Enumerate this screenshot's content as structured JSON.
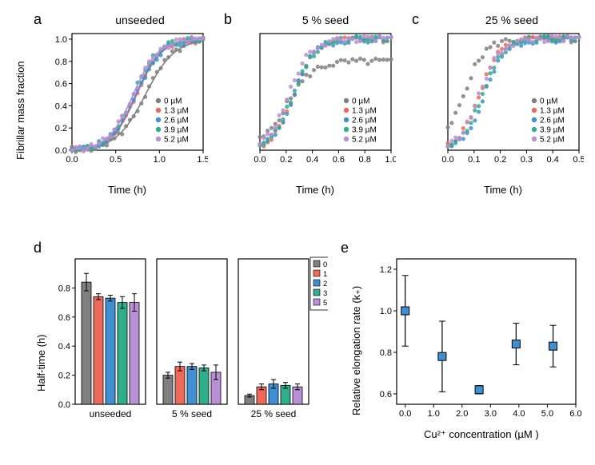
{
  "colors": {
    "c0": "#808080",
    "c1": "#ed6a5a",
    "c2": "#3f8fd2",
    "c3": "#2fae8c",
    "c4": "#b98fd6",
    "axis": "#000000",
    "bg": "#ffffff",
    "plotE_marker_fill": "#3f8fd2",
    "plotE_marker_edge": "#000000"
  },
  "concentrations": [
    "0 µM",
    "1.3 µM",
    "2.6 µM",
    "3.9 µM",
    "5.2 µM"
  ],
  "panelA": {
    "label": "a",
    "title": "unseeded",
    "xlabel": "Time (h)",
    "xlim": [
      0,
      1.5
    ],
    "xticks": [
      0.0,
      0.5,
      1.0,
      1.5
    ],
    "ylim": [
      0,
      1.05
    ],
    "yticks": [
      0.0,
      0.2,
      0.4,
      0.6,
      0.8,
      1.0
    ],
    "curves": {
      "t50": [
        0.84,
        0.74,
        0.73,
        0.7,
        0.7
      ],
      "k": [
        6,
        7,
        7,
        7,
        7
      ]
    }
  },
  "panelB": {
    "label": "b",
    "title": "5 % seed",
    "xlabel": "Time (h)",
    "xlim": [
      0,
      1.0
    ],
    "xticks": [
      0.0,
      0.2,
      0.4,
      0.6,
      0.8,
      1.0
    ],
    "ylim": [
      0,
      1.05
    ],
    "yticks": [
      0.0,
      0.2,
      0.4,
      0.6,
      0.8,
      1.0
    ],
    "curves": {
      "t50": [
        0.2,
        0.26,
        0.26,
        0.25,
        0.22
      ],
      "k": [
        10,
        12,
        12,
        12,
        12
      ],
      "plateau": [
        0.8,
        1.0,
        1.0,
        1.0,
        1.0
      ]
    }
  },
  "panelC": {
    "label": "c",
    "title": "25 % seed",
    "xlabel": "Time (h)",
    "xlim": [
      0,
      0.5
    ],
    "xticks": [
      0.0,
      0.1,
      0.2,
      0.3,
      0.4,
      0.5
    ],
    "ylim": [
      0,
      1.05
    ],
    "yticks": [
      0.0,
      0.2,
      0.4,
      0.6,
      0.8,
      1.0
    ],
    "curves": {
      "t50": [
        0.06,
        0.12,
        0.14,
        0.13,
        0.12
      ],
      "k": [
        25,
        25,
        25,
        25,
        25
      ]
    }
  },
  "panelD": {
    "label": "d",
    "ylabel": "Half-time (h)",
    "ylim": [
      0,
      1.0
    ],
    "yticks": [
      0.0,
      0.2,
      0.4,
      0.6,
      0.8
    ],
    "groups": [
      "unseeded",
      "5 % seed",
      "25 % seed"
    ],
    "values": [
      [
        0.84,
        0.74,
        0.73,
        0.7,
        0.7
      ],
      [
        0.2,
        0.26,
        0.26,
        0.25,
        0.22
      ],
      [
        0.06,
        0.12,
        0.14,
        0.13,
        0.12
      ]
    ],
    "errors": [
      [
        0.06,
        0.02,
        0.02,
        0.04,
        0.06
      ],
      [
        0.02,
        0.03,
        0.02,
        0.02,
        0.05
      ],
      [
        0.01,
        0.02,
        0.03,
        0.02,
        0.02
      ]
    ]
  },
  "panelE": {
    "label": "e",
    "xlabel": "Cu²⁺ concentration (µM )",
    "ylabel": "Relative elongation rate (k₊)",
    "xlim": [
      -0.3,
      6.0
    ],
    "xticks": [
      0.0,
      1.0,
      2.0,
      3.0,
      4.0,
      5.0,
      6.0
    ],
    "ylim": [
      0.55,
      1.25
    ],
    "yticks": [
      0.6,
      0.8,
      1.0,
      1.2
    ],
    "points": {
      "x": [
        0,
        1.3,
        2.6,
        3.9,
        5.2
      ],
      "y": [
        1.0,
        0.78,
        0.62,
        0.84,
        0.83
      ],
      "err": [
        0.17,
        0.17,
        0.02,
        0.1,
        0.1
      ]
    }
  },
  "shared_ylabel_top": "Fibrillar mass fraction",
  "fontsize": {
    "label": 18,
    "title": 14,
    "axis": 13,
    "tick": 11,
    "legend": 10
  }
}
